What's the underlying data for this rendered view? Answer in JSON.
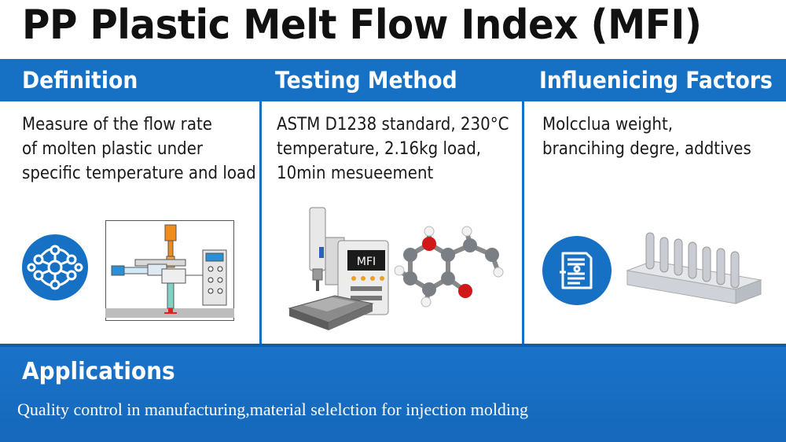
{
  "title": "PP Plastic Melt Flow Index (MFI)",
  "columns": [
    {
      "heading": "Definition",
      "lines": [
        "Measure of the flow rate",
        "of molten plastic under",
        "specific temperature and load"
      ],
      "icon": "network-circle-icon",
      "illustration": "extrusion-machine-diagram"
    },
    {
      "heading": "Testing Method",
      "lines": [
        "ASTM D1238 standard, 230°C",
        "temperature, 2.16kg load,",
        "10min mesueement"
      ],
      "illustration": "mfi-tester-machine",
      "machine_label": "MFI",
      "molecule": "molecule-model"
    },
    {
      "heading": "Influenicing Factors",
      "lines": [
        "Molcclua weight,",
        "brancihing degre, addtives"
      ],
      "icon": "document-list-icon",
      "illustration": "pin-rack-samples"
    }
  ],
  "applications": {
    "heading": "Applications",
    "text": "Quality control in manufacturing,material selelction for injection molding"
  },
  "colors": {
    "accent": "#1670c4",
    "white": "#ffffff"
  }
}
